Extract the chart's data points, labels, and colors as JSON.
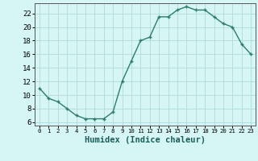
{
  "x": [
    0,
    1,
    2,
    3,
    4,
    5,
    6,
    7,
    8,
    9,
    10,
    11,
    12,
    13,
    14,
    15,
    16,
    17,
    18,
    19,
    20,
    21,
    22,
    23
  ],
  "y": [
    11,
    9.5,
    9,
    8,
    7,
    6.5,
    6.5,
    6.5,
    7.5,
    12,
    15,
    18,
    18.5,
    21.5,
    21.5,
    22.5,
    23,
    22.5,
    22.5,
    21.5,
    20.5,
    20,
    17.5,
    16
  ],
  "line_color": "#2e7d6e",
  "marker": "+",
  "marker_size": 3.5,
  "marker_edge_width": 1.0,
  "bg_color": "#d6f5f5",
  "grid_color": "#b0dada",
  "xlabel": "Humidex (Indice chaleur)",
  "xlim": [
    -0.5,
    23.5
  ],
  "ylim": [
    5.5,
    23.5
  ],
  "yticks": [
    6,
    8,
    10,
    12,
    14,
    16,
    18,
    20,
    22
  ],
  "xticks": [
    0,
    1,
    2,
    3,
    4,
    5,
    6,
    7,
    8,
    9,
    10,
    11,
    12,
    13,
    14,
    15,
    16,
    17,
    18,
    19,
    20,
    21,
    22,
    23
  ],
  "xlabel_fontsize": 7.5,
  "ytick_fontsize": 6.5,
  "xtick_fontsize": 5.2,
  "line_width": 1.0,
  "spine_color": "#555555"
}
